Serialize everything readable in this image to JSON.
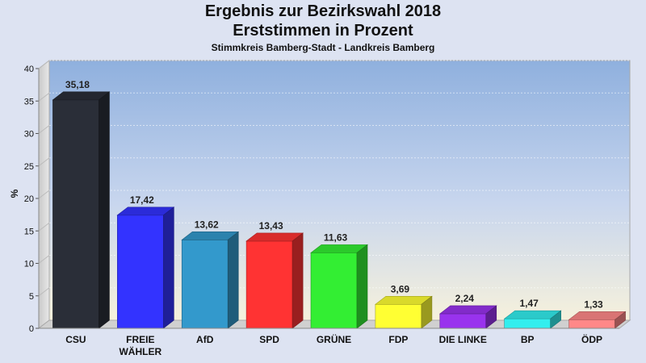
{
  "chart_data": {
    "type": "bar",
    "title": "Ergebnis zur Bezirkswahl 2018",
    "subtitle": "Erststimmen in Prozent",
    "subsubtitle": "Stimmkreis Bamberg-Stadt - Landkreis Bamberg",
    "xlabel": "",
    "ylabel": "%",
    "ylim": [
      0,
      40
    ],
    "yticks": [
      0,
      5,
      10,
      15,
      20,
      25,
      30,
      35,
      40
    ],
    "categories": [
      "CSU",
      "FREIE\nWÄHLER",
      "AfD",
      "SPD",
      "GRÜNE",
      "FDP",
      "DIE LINKE",
      "BP",
      "ÖDP"
    ],
    "values": [
      35.18,
      17.42,
      13.62,
      13.43,
      11.63,
      3.69,
      2.24,
      1.47,
      1.33
    ],
    "value_labels": [
      "35,18",
      "17,42",
      "13,62",
      "13,43",
      "11,63",
      "3,69",
      "2,24",
      "1,47",
      "1,33"
    ],
    "colors": [
      "#2a2e38",
      "#3333ff",
      "#3399cc",
      "#ff3333",
      "#33ee33",
      "#ffff33",
      "#9933ee",
      "#33eeee",
      "#ff8888"
    ],
    "grid": true,
    "legend": "none"
  }
}
